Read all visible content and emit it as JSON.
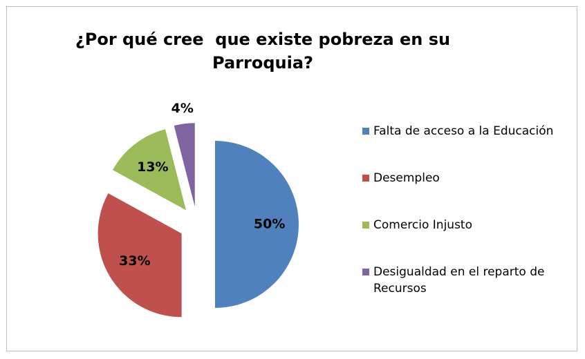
{
  "chart_data": {
    "type": "pie",
    "title": "¿Por qué cree  que existe pobreza en su Parroquia?",
    "categories": [
      "Falta de acceso a la Educación",
      "Desempleo",
      "Comercio Injusto",
      "Desigualdad en el reparto de Recursos"
    ],
    "values": [
      50,
      33,
      13,
      4
    ],
    "value_labels": [
      "50%",
      "33%",
      "13%",
      "4%"
    ],
    "colors": [
      "#4f81bd",
      "#c0504d",
      "#9bbb59",
      "#8064a2"
    ],
    "legend": "right"
  }
}
